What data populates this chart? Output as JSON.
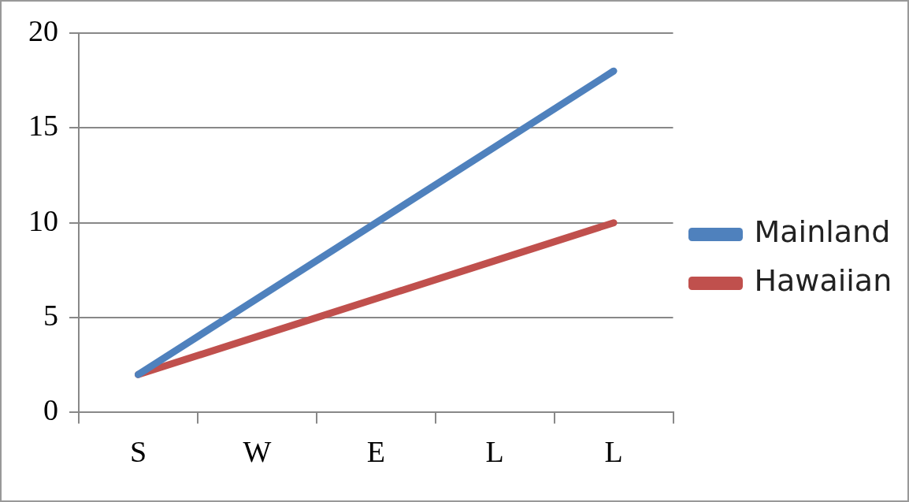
{
  "chart_data": {
    "type": "line",
    "categories": [
      "S",
      "W",
      "E",
      "L",
      "L"
    ],
    "series": [
      {
        "name": "Mainland",
        "color": "#4f81bd",
        "values": [
          2,
          6,
          10,
          14,
          18
        ]
      },
      {
        "name": "Hawaiian",
        "color": "#c0504d",
        "values": [
          2,
          4,
          6,
          8,
          10
        ]
      }
    ],
    "ylim": [
      0,
      20
    ],
    "yticks": [
      0,
      5,
      10,
      15,
      20
    ],
    "grid": "y",
    "legend": "right",
    "marker": "none",
    "line_style": "solid"
  }
}
